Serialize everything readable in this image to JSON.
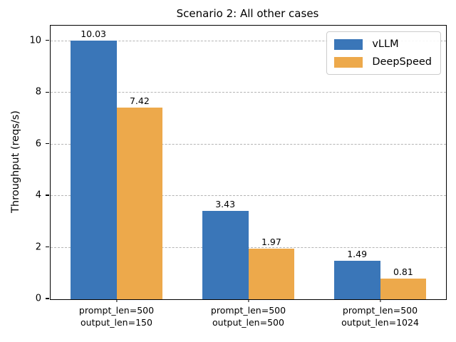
{
  "chart_data": {
    "type": "bar",
    "title": "Scenario 2: All other cases",
    "xlabel": "",
    "ylabel": "Throughput (reqs/s)",
    "categories": [
      [
        "prompt_len=500",
        "output_len=150"
      ],
      [
        "prompt_len=500",
        "output_len=500"
      ],
      [
        "prompt_len=500",
        "output_len=1024"
      ]
    ],
    "series": [
      {
        "name": "vLLM",
        "color": "#3a76b8",
        "values": [
          10.03,
          3.43,
          1.49
        ]
      },
      {
        "name": "DeepSpeed",
        "color": "#eda94b",
        "values": [
          7.42,
          1.97,
          0.81
        ]
      }
    ],
    "value_labels": [
      "10.03",
      "7.42",
      "3.43",
      "1.97",
      "1.49",
      "0.81"
    ],
    "ylim": [
      0,
      10.6
    ],
    "yticks": [
      0,
      2,
      4,
      6,
      8,
      10
    ],
    "grid": {
      "axis": "y",
      "style": "dashed",
      "color": "#b4b4b4",
      "levels": [
        2,
        4,
        6,
        8,
        10
      ]
    },
    "legend": {
      "position": "upper-right",
      "entries": [
        "vLLM",
        "DeepSpeed"
      ]
    }
  }
}
